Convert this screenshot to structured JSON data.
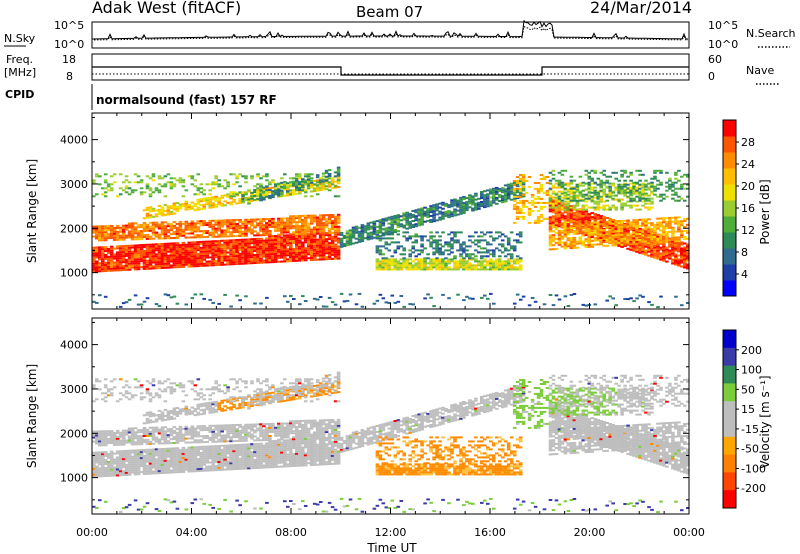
{
  "header": {
    "station": "Adak West (fitACF)",
    "beam": "Beam 07",
    "date": "24/Mar/2014"
  },
  "noise_panel": {
    "left_label": "N.Sky",
    "right_label": "N.Search",
    "left_ticks": [
      "10^5",
      "10^0"
    ],
    "right_ticks": [
      "10^5",
      "10^0"
    ]
  },
  "freq_panel": {
    "left_label_1": "Freq.",
    "left_label_2": "[MHz]",
    "right_label": "Nave",
    "left_ticks": [
      "18",
      "8"
    ],
    "right_ticks": [
      "60",
      "0"
    ]
  },
  "cpid": {
    "label": "CPID",
    "mode": "normalsound (fast) 157 RF"
  },
  "colors": {
    "red": "#ff0000",
    "orange": "#ff8c00",
    "yellow": "#f0e000",
    "green": "#2e8b2e",
    "blue": "#0000ff",
    "grey": "#bebebe"
  },
  "chart_data": [
    {
      "type": "heatmap",
      "title": "Power",
      "ylabel": "Slant Range [km]",
      "xlabel": "Time UT",
      "ylim": [
        180,
        4600
      ],
      "yticks": [
        "1000",
        "2000",
        "3000",
        "4000"
      ],
      "xticks": [
        "00:00",
        "04:00",
        "08:00",
        "12:00",
        "16:00",
        "20:00",
        "00:00"
      ],
      "colorbar": {
        "label": "Power [dB]",
        "range": [
          0,
          32
        ],
        "ticks": [
          "4",
          "8",
          "12",
          "16",
          "20",
          "24",
          "28"
        ]
      }
    },
    {
      "type": "heatmap",
      "title": "Velocity",
      "ylabel": "Slant Range [km]",
      "xlabel": "Time UT",
      "ylim": [
        180,
        4600
      ],
      "yticks": [
        "1000",
        "2000",
        "3000",
        "4000"
      ],
      "xticks": [
        "00:00",
        "04:00",
        "08:00",
        "12:00",
        "16:00",
        "20:00",
        "00:00"
      ],
      "colorbar": {
        "label": "Velocity [m s⁻¹]",
        "ticks": [
          "200",
          "100",
          "50",
          "15",
          "-15",
          "-50",
          "-100",
          "-200"
        ]
      }
    }
  ]
}
